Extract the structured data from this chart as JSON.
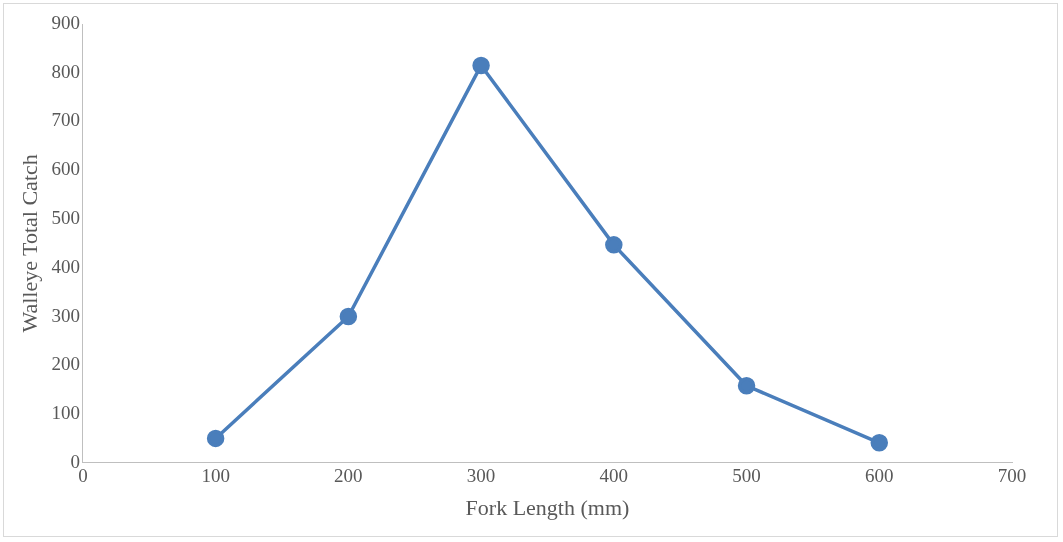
{
  "chart_data": {
    "type": "line",
    "xlabel": "Fork Length (mm)",
    "ylabel": "Walleye Total Catch",
    "x": [
      100,
      200,
      300,
      400,
      500,
      600
    ],
    "series": [
      {
        "color": "#4a7ebb",
        "values": [
          50,
          300,
          815,
          447,
          158,
          41
        ]
      }
    ],
    "xlim": [
      0,
      700
    ],
    "xticks": [
      0,
      100,
      200,
      300,
      400,
      500,
      600,
      700
    ],
    "ylim": [
      0,
      900
    ],
    "yticks": [
      0,
      100,
      200,
      300,
      400,
      500,
      600,
      700,
      800,
      900
    ],
    "grid": false,
    "legend": false,
    "marker": "circle",
    "line_style": "solid"
  }
}
